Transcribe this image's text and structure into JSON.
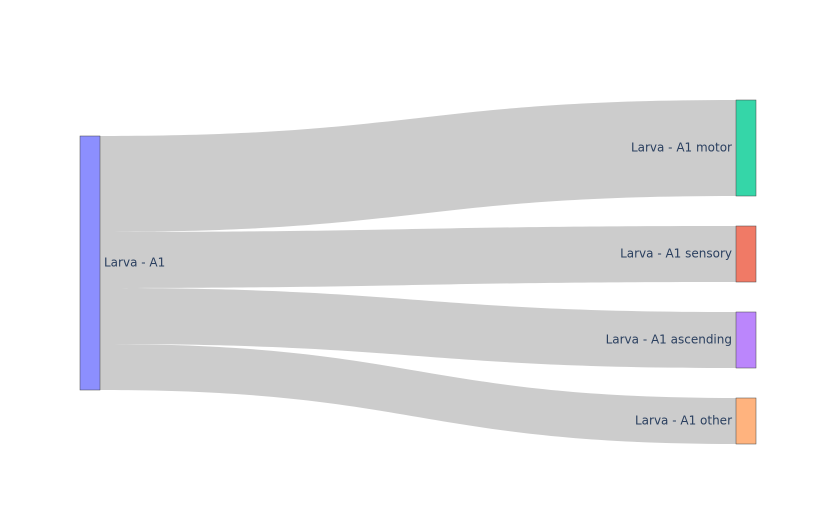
{
  "chart_data": {
    "type": "sankey",
    "nodes": [
      {
        "id": "a1",
        "label": "Larva - A1",
        "color": "#8c8ffe",
        "column": 0
      },
      {
        "id": "motor",
        "label": "Larva - A1 motor",
        "color": "#35d6a8",
        "column": 1
      },
      {
        "id": "sensory",
        "label": "Larva - A1 sensory",
        "color": "#f07a66",
        "column": 1
      },
      {
        "id": "ascending",
        "label": "Larva - A1 ascending",
        "color": "#bb86fc",
        "column": 1
      },
      {
        "id": "other",
        "label": "Larva - A1 other",
        "color": "#ffb37e",
        "column": 1
      }
    ],
    "links": [
      {
        "source": "a1",
        "target": "motor",
        "value": 96
      },
      {
        "source": "a1",
        "target": "sensory",
        "value": 56
      },
      {
        "source": "a1",
        "target": "ascending",
        "value": 56
      },
      {
        "source": "a1",
        "target": "other",
        "value": 46
      }
    ],
    "link_color": "#cccccc"
  }
}
